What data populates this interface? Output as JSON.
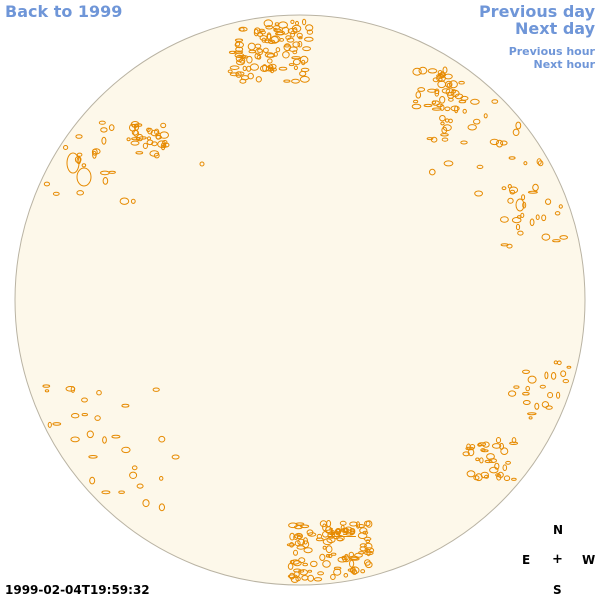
{
  "nav": {
    "back_label": "Back to 1999",
    "previous_day": "Previous day",
    "next_day": "Next day",
    "previous_hour": "Previous hour",
    "next_hour": "Next hour"
  },
  "disk": {
    "year_label": "1999",
    "fill_color": "#fdf8ea",
    "edge_color": "#b9b3a3",
    "contour_color": "#e68a00"
  },
  "compass": {
    "n": "N",
    "e": "E",
    "center": "+",
    "w": "W",
    "s": "S"
  },
  "timestamp": "1999-02-04T19:59:32"
}
